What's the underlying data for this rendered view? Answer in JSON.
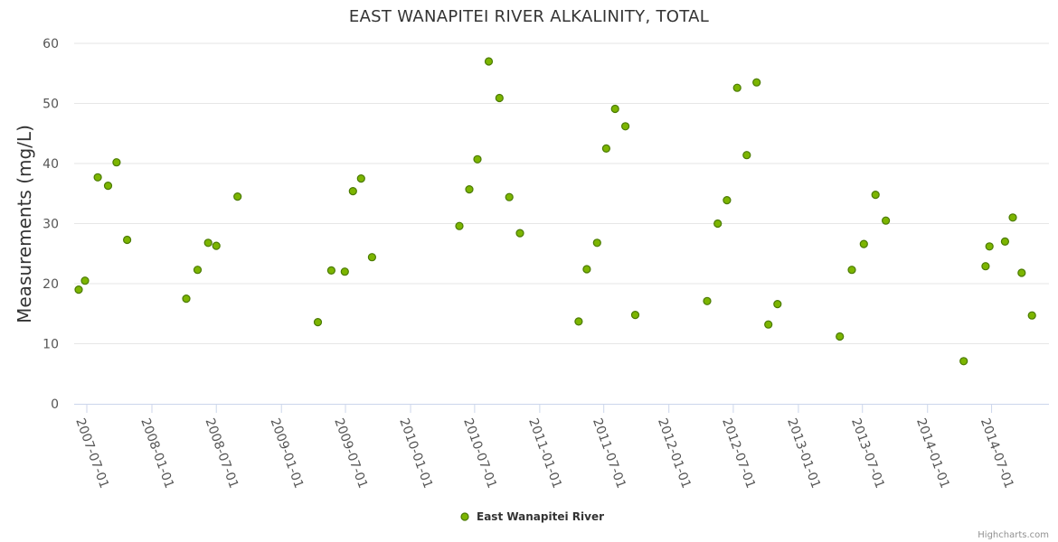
{
  "chart_data": {
    "type": "scatter",
    "title": "EAST WANAPITEI RIVER ALKALINITY, TOTAL",
    "ylabel": "Measurements (mg/L)",
    "xlabel": "",
    "ylim": [
      0,
      60
    ],
    "yticks": [
      0,
      10,
      20,
      30,
      40,
      50,
      60
    ],
    "xticks": [
      "2007-07-01",
      "2008-01-01",
      "2008-07-01",
      "2009-01-01",
      "2009-07-01",
      "2010-01-01",
      "2010-07-01",
      "2011-01-01",
      "2011-07-01",
      "2012-01-01",
      "2012-07-01",
      "2013-01-01",
      "2013-07-01",
      "2014-01-01",
      "2014-07-01"
    ],
    "grid": true,
    "legend_position": "bottom-center",
    "series": [
      {
        "name": "East Wanapitei River",
        "color": "#7cb500",
        "points": [
          [
            "2007-06-08",
            19.0
          ],
          [
            "2007-06-26",
            20.5
          ],
          [
            "2007-08-01",
            37.7
          ],
          [
            "2007-08-30",
            36.3
          ],
          [
            "2007-09-23",
            40.2
          ],
          [
            "2007-10-23",
            27.3
          ],
          [
            "2008-04-07",
            17.5
          ],
          [
            "2008-05-09",
            22.3
          ],
          [
            "2008-06-08",
            26.8
          ],
          [
            "2008-07-01",
            26.3
          ],
          [
            "2008-08-30",
            34.5
          ],
          [
            "2009-04-14",
            13.6
          ],
          [
            "2009-05-22",
            22.2
          ],
          [
            "2009-06-29",
            22.0
          ],
          [
            "2009-07-22",
            35.4
          ],
          [
            "2009-08-14",
            37.5
          ],
          [
            "2009-09-14",
            24.4
          ],
          [
            "2010-05-19",
            29.6
          ],
          [
            "2010-06-16",
            35.7
          ],
          [
            "2010-07-09",
            40.7
          ],
          [
            "2010-08-10",
            57.0
          ],
          [
            "2010-09-09",
            50.9
          ],
          [
            "2010-10-07",
            34.4
          ],
          [
            "2010-11-06",
            28.4
          ],
          [
            "2011-04-21",
            13.7
          ],
          [
            "2011-05-14",
            22.4
          ],
          [
            "2011-06-12",
            26.8
          ],
          [
            "2011-07-08",
            42.5
          ],
          [
            "2011-08-02",
            49.1
          ],
          [
            "2011-08-31",
            46.2
          ],
          [
            "2011-09-28",
            14.8
          ],
          [
            "2012-04-18",
            17.1
          ],
          [
            "2012-05-18",
            30.0
          ],
          [
            "2012-06-13",
            33.9
          ],
          [
            "2012-07-12",
            52.6
          ],
          [
            "2012-08-08",
            41.4
          ],
          [
            "2012-09-05",
            53.5
          ],
          [
            "2012-10-08",
            13.2
          ],
          [
            "2012-11-03",
            16.6
          ],
          [
            "2013-04-28",
            11.2
          ],
          [
            "2013-06-01",
            22.3
          ],
          [
            "2013-07-05",
            26.6
          ],
          [
            "2013-08-07",
            34.8
          ],
          [
            "2013-09-05",
            30.5
          ],
          [
            "2014-04-13",
            7.1
          ],
          [
            "2014-06-14",
            22.9
          ],
          [
            "2014-06-25",
            26.2
          ],
          [
            "2014-08-08",
            27.0
          ],
          [
            "2014-08-30",
            31.0
          ],
          [
            "2014-09-24",
            21.8
          ],
          [
            "2014-10-23",
            14.7
          ]
        ]
      }
    ]
  },
  "credits": "Highcharts.com"
}
